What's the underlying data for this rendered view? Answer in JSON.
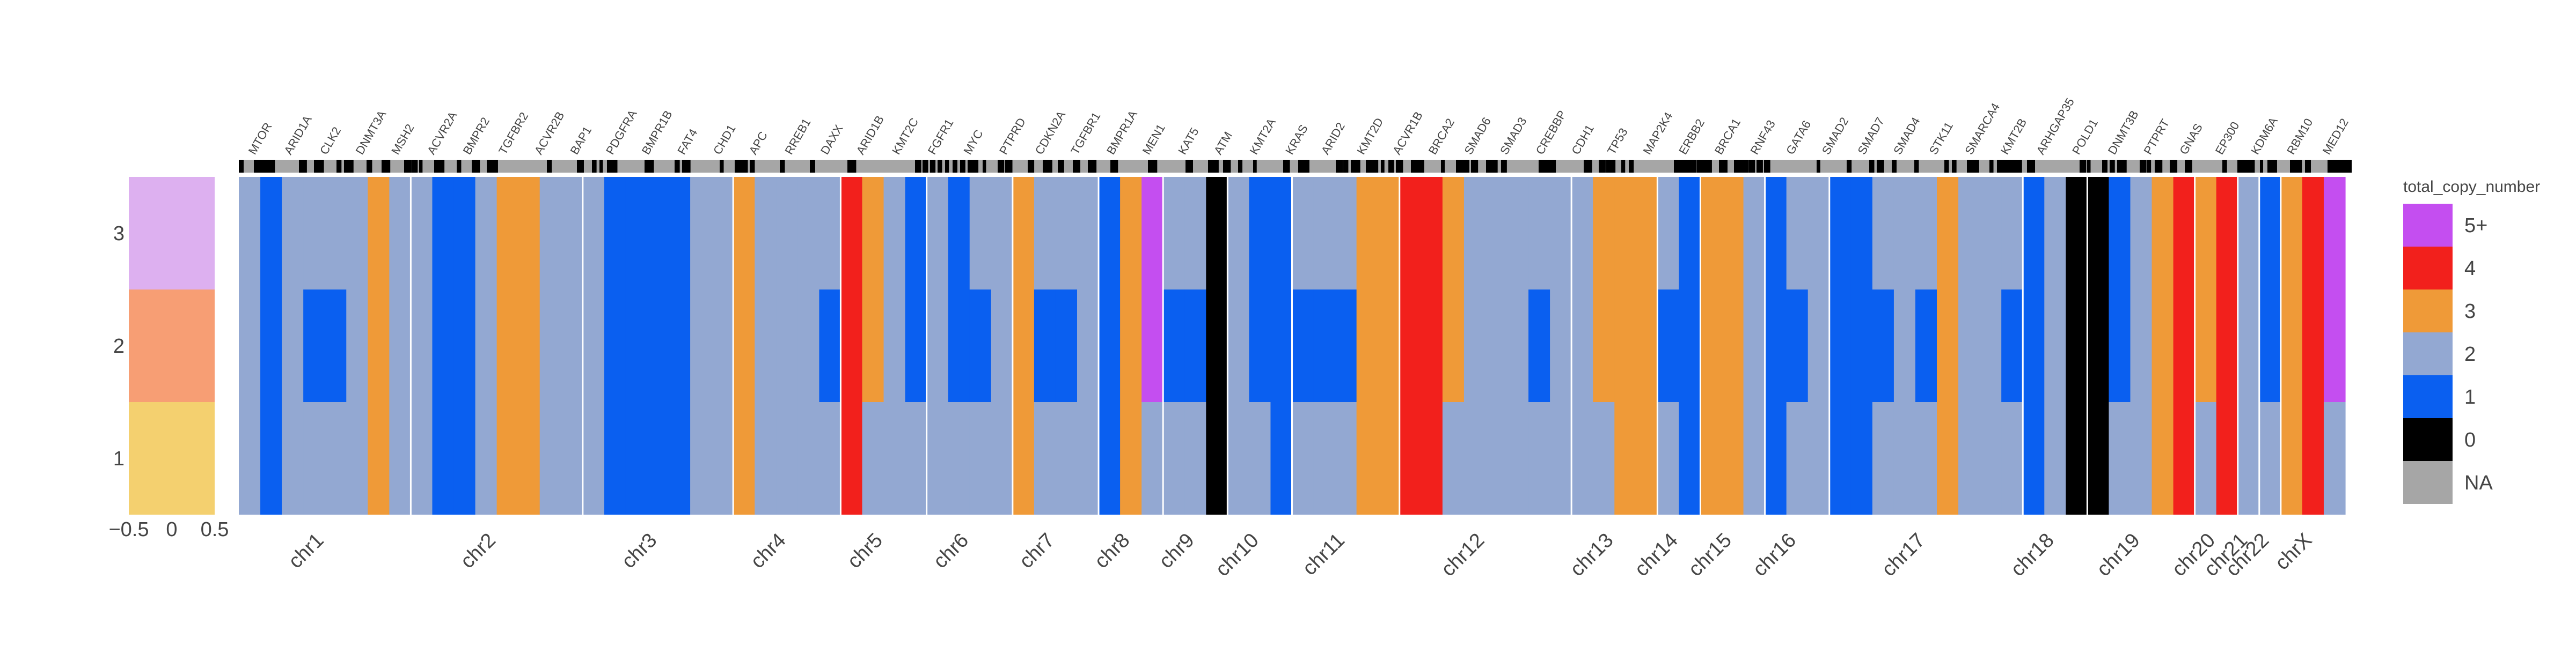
{
  "chart_data": {
    "type": "heatmap",
    "legend": {
      "title": "total_copy_number",
      "items": [
        {
          "label": "5+",
          "color": "#c44ef0"
        },
        {
          "label": "4",
          "color": "#f2201c"
        },
        {
          "label": "3",
          "color": "#ef9a38"
        },
        {
          "label": "2",
          "color": "#93a8d2"
        },
        {
          "label": "1",
          "color": "#0a5ff0"
        },
        {
          "label": "0",
          "color": "#000000"
        },
        {
          "label": "NA",
          "color": "#a6a6a6"
        }
      ]
    },
    "samples": [
      "3",
      "2",
      "1"
    ],
    "sample_colors": [
      "#ddb0f0",
      "#f79e74",
      "#f4d06f"
    ],
    "left_xaxis": {
      "ticks": [
        "−0.5",
        "0",
        "0.5"
      ],
      "range": [
        -0.5,
        0.5
      ]
    },
    "chromosomes": [
      {
        "name": "chr1",
        "start": 0,
        "end": 8
      },
      {
        "name": "chr2",
        "start": 8,
        "end": 16
      },
      {
        "name": "chr3",
        "start": 16,
        "end": 23
      },
      {
        "name": "chr4",
        "start": 23,
        "end": 28
      },
      {
        "name": "chr5",
        "start": 28,
        "end": 32
      },
      {
        "name": "chr6",
        "start": 32,
        "end": 36
      },
      {
        "name": "chr7",
        "start": 36,
        "end": 40
      },
      {
        "name": "chr8",
        "start": 40,
        "end": 43
      },
      {
        "name": "chr9",
        "start": 43,
        "end": 46
      },
      {
        "name": "chr10",
        "start": 46,
        "end": 49
      },
      {
        "name": "chr11",
        "start": 49,
        "end": 54
      },
      {
        "name": "chr12",
        "start": 54,
        "end": 62
      },
      {
        "name": "chr13",
        "start": 62,
        "end": 66
      },
      {
        "name": "chr14",
        "start": 66,
        "end": 68
      },
      {
        "name": "chr15",
        "start": 68,
        "end": 71
      },
      {
        "name": "chr16",
        "start": 71,
        "end": 74
      },
      {
        "name": "chr17",
        "start": 74,
        "end": 83
      },
      {
        "name": "chr18",
        "start": 83,
        "end": 86
      },
      {
        "name": "chr19",
        "start": 86,
        "end": 91
      },
      {
        "name": "chr20",
        "start": 91,
        "end": 93
      },
      {
        "name": "chr21",
        "start": 93,
        "end": 94
      },
      {
        "name": "chr22",
        "start": 94,
        "end": 95
      },
      {
        "name": "chrX",
        "start": 95,
        "end": 98
      }
    ],
    "genes": [
      "MTOR",
      "ARID1A",
      "CLK2",
      "DNMT3A",
      "MSH2",
      "ACVR2A",
      "BMPR2",
      "TGFBR2",
      "ACVR2B",
      "BAP1",
      "PDGFRA",
      "BMPR1B",
      "FAT4",
      "CHD1",
      "APC",
      "RREB1",
      "DAXX",
      "ARID1B",
      "KMT2C",
      "FGFR1",
      "MYC",
      "PTPRD",
      "CDKN2A",
      "TGFBR1",
      "BMPR1A",
      "MEN1",
      "KAT5",
      "ATM",
      "KMT2A",
      "KRAS",
      "ARID2",
      "KMT2D",
      "ACVR1B",
      "BRCA2",
      "SMAD6",
      "SMAD3",
      "CREBBP",
      "CDH1",
      "TP53",
      "MAP2K4",
      "ERBB2",
      "BRCA1",
      "RNF43",
      "GATA6",
      "SMAD2",
      "SMAD7",
      "SMAD4",
      "STK11",
      "SMARCA4",
      "KMT2B",
      "ARHGAP35",
      "POLD1",
      "DNMT3B",
      "PTPRT",
      "GNAS",
      "EP300",
      "KDM6A",
      "RBM10",
      "MED12"
    ],
    "segments": [
      {
        "chr": "chr1",
        "values": [
          2,
          1,
          2,
          2,
          2,
          2,
          3,
          2
        ]
      },
      {
        "chr": "chr2",
        "values": [
          2,
          1,
          1,
          2,
          3,
          3,
          2,
          2
        ]
      },
      {
        "chr": "chr3",
        "values": [
          2,
          1,
          1,
          1,
          1,
          2,
          2
        ]
      },
      {
        "chr": "chr4",
        "values": [
          3,
          2,
          2,
          2,
          2
        ]
      },
      {
        "chr": "chr5",
        "values": [
          4,
          3,
          2,
          1
        ]
      },
      {
        "chr": "chr6",
        "values": [
          2,
          1,
          2,
          2
        ]
      },
      {
        "chr": "chr7",
        "values": [
          3,
          2,
          2,
          2
        ]
      },
      {
        "chr": "chr8",
        "values": [
          1,
          3,
          5
        ]
      },
      {
        "chr": "chr9",
        "values": [
          2,
          2,
          0
        ]
      },
      {
        "chr": "chr10",
        "values": [
          2,
          1,
          1
        ]
      },
      {
        "chr": "chr11",
        "values": [
          2,
          2,
          2,
          3,
          3
        ]
      },
      {
        "chr": "chr12",
        "values": [
          4,
          4,
          3,
          2,
          2,
          2,
          2,
          2
        ]
      },
      {
        "chr": "chr13",
        "values": [
          2,
          3,
          3,
          3
        ]
      },
      {
        "chr": "chr14",
        "values": [
          2,
          1
        ]
      },
      {
        "chr": "chr15",
        "values": [
          3,
          3,
          2
        ]
      },
      {
        "chr": "chr16",
        "values": [
          1,
          2,
          2
        ]
      },
      {
        "chr": "chr17",
        "values": [
          1,
          1,
          2,
          2,
          2,
          3,
          2,
          2,
          2
        ]
      },
      {
        "chr": "chr18",
        "values": [
          1,
          2,
          0
        ]
      },
      {
        "chr": "chr19",
        "values": [
          0,
          1,
          2,
          3,
          4
        ]
      },
      {
        "chr": "chr20",
        "values": [
          3,
          4
        ]
      },
      {
        "chr": "chr21",
        "values": [
          2
        ]
      },
      {
        "chr": "chr22",
        "values": [
          1
        ]
      },
      {
        "chr": "chrX",
        "values": [
          3,
          4,
          5
        ]
      }
    ]
  }
}
